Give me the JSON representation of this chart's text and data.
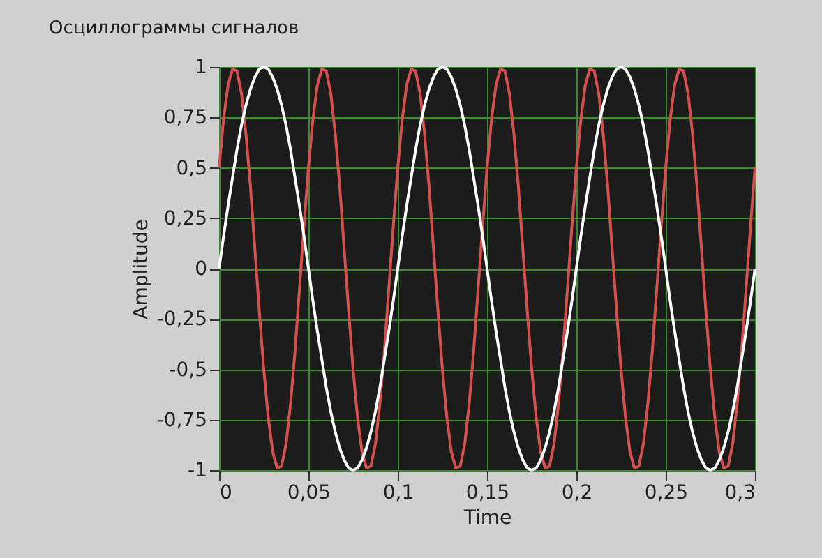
{
  "chart_data": {
    "type": "line",
    "title": "Осциллограммы сигналов",
    "xlabel": "Time",
    "ylabel": "Amplitude",
    "x": [
      0,
      0.0025,
      0.005,
      0.0075,
      0.01,
      0.0125,
      0.015,
      0.0175,
      0.02,
      0.0225,
      0.025,
      0.0275,
      0.03,
      0.0325,
      0.035,
      0.0375,
      0.04,
      0.0425,
      0.045,
      0.0475,
      0.05,
      0.0525,
      0.055,
      0.0575,
      0.06,
      0.0625,
      0.065,
      0.0675,
      0.07,
      0.0725,
      0.075,
      0.0775,
      0.08,
      0.0825,
      0.085,
      0.0875,
      0.09,
      0.0925,
      0.095,
      0.0975,
      0.1,
      0.1025,
      0.105,
      0.1075,
      0.11,
      0.1125,
      0.115,
      0.1175,
      0.12,
      0.1225,
      0.125,
      0.1275,
      0.13,
      0.1325,
      0.135,
      0.1375,
      0.14,
      0.1425,
      0.145,
      0.1475,
      0.15,
      0.1525,
      0.155,
      0.1575,
      0.16,
      0.1625,
      0.165,
      0.1675,
      0.17,
      0.1725,
      0.175,
      0.1775,
      0.18,
      0.1825,
      0.185,
      0.1875,
      0.19,
      0.1925,
      0.195,
      0.1975,
      0.2,
      0.2025,
      0.205,
      0.2075,
      0.21,
      0.2125,
      0.215,
      0.2175,
      0.22,
      0.2225,
      0.225,
      0.2275,
      0.23,
      0.2325,
      0.235,
      0.2375,
      0.24,
      0.2425,
      0.245,
      0.2475,
      0.25,
      0.2525,
      0.255,
      0.2575,
      0.26,
      0.2625,
      0.265,
      0.2675,
      0.27,
      0.2725,
      0.275,
      0.2775,
      0.28,
      0.2825,
      0.285,
      0.2875,
      0.29,
      0.2925,
      0.295,
      0.2975,
      0.3
    ],
    "series": [
      {
        "color": "#d5504c",
        "values": [
          0.5,
          0.74,
          0.91,
          0.99,
          0.98,
          0.87,
          0.67,
          0.41,
          0.1,
          -0.21,
          -0.5,
          -0.74,
          -0.91,
          -0.99,
          -0.98,
          -0.87,
          -0.67,
          -0.41,
          -0.1,
          0.21,
          0.5,
          0.74,
          0.91,
          0.99,
          0.98,
          0.87,
          0.67,
          0.41,
          0.1,
          -0.21,
          -0.5,
          -0.74,
          -0.91,
          -0.99,
          -0.98,
          -0.87,
          -0.67,
          -0.41,
          -0.1,
          0.21,
          0.5,
          0.74,
          0.91,
          0.99,
          0.98,
          0.87,
          0.67,
          0.41,
          0.1,
          -0.21,
          -0.5,
          -0.74,
          -0.91,
          -0.99,
          -0.98,
          -0.87,
          -0.67,
          -0.41,
          -0.1,
          0.21,
          0.5,
          0.74,
          0.91,
          0.99,
          0.98,
          0.87,
          0.67,
          0.41,
          0.1,
          -0.21,
          -0.5,
          -0.74,
          -0.91,
          -0.99,
          -0.98,
          -0.87,
          -0.67,
          -0.41,
          -0.1,
          0.21,
          0.5,
          0.74,
          0.91,
          0.99,
          0.98,
          0.87,
          0.67,
          0.41,
          0.1,
          -0.21,
          -0.5,
          -0.74,
          -0.91,
          -0.99,
          -0.98,
          -0.87,
          -0.67,
          -0.41,
          -0.1,
          0.21,
          0.5,
          0.74,
          0.91,
          0.99,
          0.98,
          0.87,
          0.67,
          0.41,
          0.1,
          -0.21,
          -0.5,
          -0.74,
          -0.91,
          -0.99,
          -0.98,
          -0.87,
          -0.67,
          -0.41,
          -0.1,
          0.21,
          0.5
        ]
      },
      {
        "color": "#ffffff",
        "values": [
          0,
          0.16,
          0.31,
          0.45,
          0.59,
          0.71,
          0.81,
          0.89,
          0.95,
          0.99,
          1,
          0.99,
          0.95,
          0.89,
          0.81,
          0.71,
          0.59,
          0.45,
          0.31,
          0.16,
          0,
          -0.16,
          -0.31,
          -0.45,
          -0.59,
          -0.71,
          -0.81,
          -0.89,
          -0.95,
          -0.99,
          -1,
          -0.99,
          -0.95,
          -0.89,
          -0.81,
          -0.71,
          -0.59,
          -0.45,
          -0.31,
          -0.16,
          0,
          0.16,
          0.31,
          0.45,
          0.59,
          0.71,
          0.81,
          0.89,
          0.95,
          0.99,
          1,
          0.99,
          0.95,
          0.89,
          0.81,
          0.71,
          0.59,
          0.45,
          0.31,
          0.16,
          0,
          -0.16,
          -0.31,
          -0.45,
          -0.59,
          -0.71,
          -0.81,
          -0.89,
          -0.95,
          -0.99,
          -1,
          -0.99,
          -0.95,
          -0.89,
          -0.81,
          -0.71,
          -0.59,
          -0.45,
          -0.31,
          -0.16,
          0,
          0.16,
          0.31,
          0.45,
          0.59,
          0.71,
          0.81,
          0.89,
          0.95,
          0.99,
          1,
          0.99,
          0.95,
          0.89,
          0.81,
          0.71,
          0.59,
          0.45,
          0.31,
          0.16,
          0,
          -0.16,
          -0.31,
          -0.45,
          -0.59,
          -0.71,
          -0.81,
          -0.89,
          -0.95,
          -0.99,
          -1,
          -0.99,
          -0.95,
          -0.89,
          -0.81,
          -0.71,
          -0.59,
          -0.45,
          -0.31,
          -0.16,
          0
        ]
      }
    ],
    "xlim": [
      0,
      0.3
    ],
    "xticks": [
      0,
      {
        "value": 0.05,
        "label": "0,05"
      },
      {
        "value": 0.1,
        "label": "0,1"
      },
      {
        "value": 0.15,
        "label": "0,15"
      },
      {
        "value": 0.2,
        "label": "0,2"
      },
      {
        "value": 0.25,
        "label": "0,25"
      },
      {
        "value": 0.3,
        "label": "0,3"
      }
    ],
    "ylim": [
      -1,
      1
    ],
    "yticks": [
      -1,
      {
        "value": -0.75,
        "label": "-0,75"
      },
      {
        "value": -0.5,
        "label": "-0,5"
      },
      {
        "value": -0.25,
        "label": "-0,25"
      },
      0,
      {
        "value": 0.25,
        "label": "0,25"
      },
      {
        "value": 0.5,
        "label": "0,5"
      },
      {
        "value": 0.75,
        "label": "0,75"
      },
      1
    ],
    "grid": true,
    "legend": false,
    "marker": "none",
    "line_style": "solid"
  }
}
